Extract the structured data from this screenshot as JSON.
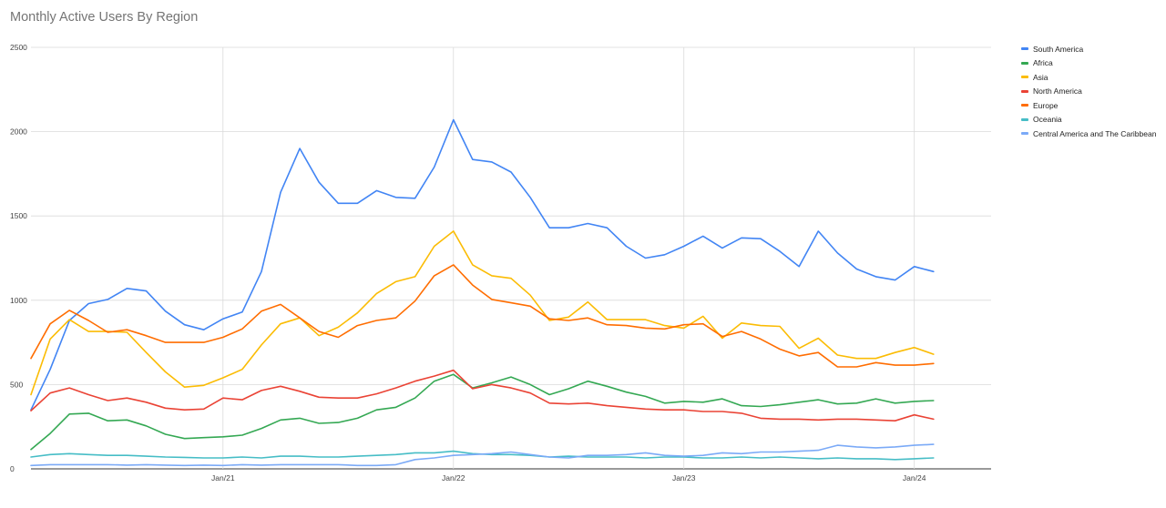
{
  "chart_data": {
    "type": "line",
    "title": "Monthly Active Users By Region",
    "xlabel": "",
    "ylabel": "",
    "ylim": [
      0,
      2500
    ],
    "yticks": [
      0,
      500,
      1000,
      1500,
      2000,
      2500
    ],
    "xlim": [
      "2020-03",
      "2024-05"
    ],
    "xticks": [
      {
        "x": "2021-01",
        "label": "Jan/21"
      },
      {
        "x": "2022-01",
        "label": "Jan/22"
      },
      {
        "x": "2023-01",
        "label": "Jan/23"
      },
      {
        "x": "2024-01",
        "label": "Jan/24"
      }
    ],
    "grid": true,
    "legend_position": "right",
    "x": [
      "2020-03",
      "2020-04",
      "2020-05",
      "2020-06",
      "2020-07",
      "2020-08",
      "2020-09",
      "2020-10",
      "2020-11",
      "2020-12",
      "2021-01",
      "2021-02",
      "2021-03",
      "2021-04",
      "2021-05",
      "2021-06",
      "2021-07",
      "2021-08",
      "2021-09",
      "2021-10",
      "2021-11",
      "2021-12",
      "2022-01",
      "2022-02",
      "2022-03",
      "2022-04",
      "2022-05",
      "2022-06",
      "2022-07",
      "2022-08",
      "2022-09",
      "2022-10",
      "2022-11",
      "2022-12",
      "2023-01",
      "2023-02",
      "2023-03",
      "2023-04",
      "2023-05",
      "2023-06",
      "2023-07",
      "2023-08",
      "2023-09",
      "2023-10",
      "2023-11",
      "2023-12",
      "2024-01",
      "2024-02"
    ],
    "series": [
      {
        "name": "South America",
        "color": "#4285f4",
        "values": [
          350,
          590,
          880,
          980,
          1005,
          1070,
          1055,
          935,
          855,
          825,
          890,
          930,
          1170,
          1640,
          1900,
          1700,
          1575,
          1575,
          1650,
          1610,
          1605,
          1790,
          2070,
          1835,
          1820,
          1760,
          1610,
          1430,
          1430,
          1455,
          1430,
          1320,
          1250,
          1270,
          1320,
          1380,
          1310,
          1370,
          1365,
          1290,
          1200,
          1410,
          1280,
          1185,
          1140,
          1120,
          1200,
          1170
        ]
      },
      {
        "name": "Africa",
        "color": "#34a853",
        "values": [
          115,
          210,
          325,
          330,
          285,
          290,
          255,
          205,
          180,
          185,
          190,
          200,
          240,
          290,
          300,
          270,
          275,
          300,
          350,
          365,
          420,
          520,
          560,
          480,
          510,
          545,
          500,
          440,
          475,
          520,
          490,
          455,
          430,
          390,
          400,
          395,
          415,
          375,
          370,
          380,
          395,
          410,
          385,
          390,
          415,
          390,
          400,
          405
        ]
      },
      {
        "name": "Asia",
        "color": "#fbbc04",
        "values": [
          440,
          770,
          885,
          815,
          815,
          810,
          690,
          575,
          485,
          495,
          540,
          590,
          735,
          860,
          895,
          790,
          840,
          925,
          1040,
          1110,
          1140,
          1320,
          1410,
          1210,
          1145,
          1130,
          1030,
          880,
          900,
          990,
          885,
          885,
          885,
          850,
          835,
          905,
          775,
          865,
          850,
          845,
          715,
          775,
          675,
          655,
          655,
          690,
          720,
          680
        ]
      },
      {
        "name": "North America",
        "color": "#ea4335",
        "values": [
          345,
          450,
          480,
          440,
          405,
          420,
          395,
          360,
          350,
          355,
          420,
          410,
          465,
          490,
          460,
          425,
          420,
          420,
          445,
          480,
          520,
          550,
          585,
          475,
          500,
          480,
          450,
          390,
          385,
          390,
          375,
          365,
          355,
          350,
          350,
          340,
          340,
          330,
          300,
          295,
          295,
          290,
          295,
          295,
          290,
          285,
          320,
          295
        ]
      },
      {
        "name": "Europe",
        "color": "#ff6d01",
        "values": [
          655,
          860,
          940,
          880,
          810,
          825,
          790,
          750,
          750,
          750,
          780,
          830,
          935,
          975,
          895,
          815,
          780,
          850,
          880,
          895,
          995,
          1145,
          1210,
          1090,
          1005,
          985,
          965,
          890,
          880,
          895,
          855,
          850,
          835,
          830,
          855,
          860,
          785,
          815,
          770,
          710,
          670,
          690,
          605,
          605,
          630,
          615,
          615,
          625
        ]
      },
      {
        "name": "Oceania",
        "color": "#46bdc6",
        "values": [
          70,
          85,
          90,
          85,
          80,
          80,
          75,
          70,
          68,
          65,
          65,
          70,
          65,
          75,
          75,
          70,
          70,
          75,
          80,
          85,
          95,
          95,
          105,
          90,
          85,
          85,
          80,
          70,
          75,
          70,
          70,
          70,
          65,
          70,
          70,
          65,
          65,
          70,
          65,
          70,
          65,
          60,
          65,
          60,
          60,
          55,
          60,
          65
        ]
      },
      {
        "name": "Central America and The Caribbean",
        "color": "#7baaf7",
        "values": [
          20,
          25,
          25,
          25,
          25,
          22,
          25,
          22,
          20,
          22,
          20,
          25,
          22,
          25,
          25,
          25,
          25,
          20,
          20,
          25,
          55,
          65,
          80,
          85,
          90,
          100,
          85,
          70,
          65,
          80,
          80,
          85,
          95,
          80,
          75,
          80,
          95,
          90,
          100,
          100,
          105,
          110,
          140,
          130,
          125,
          130,
          140,
          145
        ]
      }
    ]
  }
}
